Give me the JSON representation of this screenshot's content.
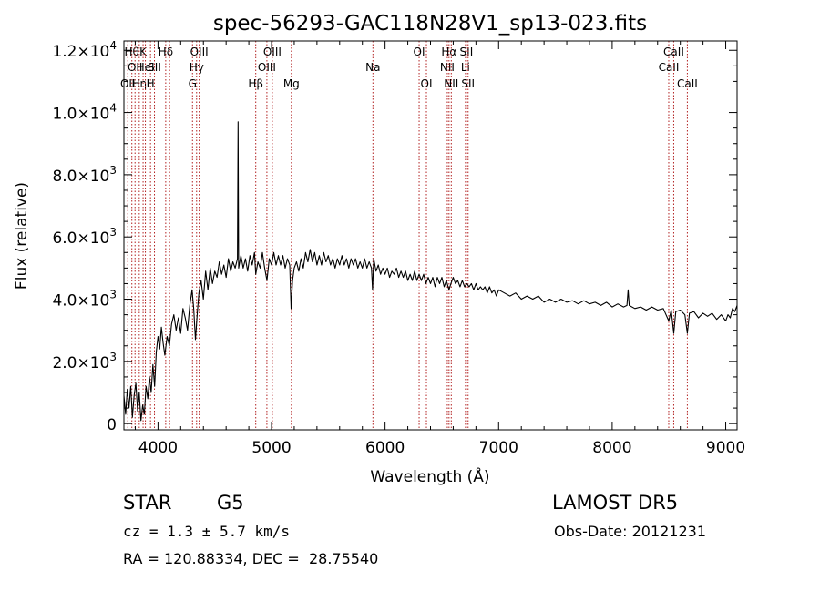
{
  "chart_data": {
    "type": "line",
    "title": "spec-56293-GAC118N28V1_sp13-023.fits",
    "xlabel": "Wavelength (Å)",
    "ylabel": "Flux (relative)",
    "xlim": [
      3700,
      9100
    ],
    "ylim": [
      -200,
      12300
    ],
    "xticks": [
      {
        "value": 4000,
        "label": "4000"
      },
      {
        "value": 5000,
        "label": "5000"
      },
      {
        "value": 6000,
        "label": "6000"
      },
      {
        "value": 7000,
        "label": "7000"
      },
      {
        "value": 8000,
        "label": "8000"
      },
      {
        "value": 9000,
        "label": "9000"
      }
    ],
    "yticks": [
      {
        "value": 0,
        "mant": "0",
        "exp": ""
      },
      {
        "value": 2000,
        "mant": "2.0×10",
        "exp": "3"
      },
      {
        "value": 4000,
        "mant": "4.0×10",
        "exp": "3"
      },
      {
        "value": 6000,
        "mant": "6.0×10",
        "exp": "3"
      },
      {
        "value": 8000,
        "mant": "8.0×10",
        "exp": "3"
      },
      {
        "value": 10000,
        "mant": "1.0×10",
        "exp": "4"
      },
      {
        "value": 12000,
        "mant": "1.2×10",
        "exp": "4"
      }
    ],
    "grid": false,
    "series": [
      {
        "color": "#000000",
        "points": [
          [
            3700,
            900
          ],
          [
            3715,
            300
          ],
          [
            3730,
            1100
          ],
          [
            3745,
            500
          ],
          [
            3760,
            1200
          ],
          [
            3775,
            200
          ],
          [
            3790,
            900
          ],
          [
            3805,
            1300
          ],
          [
            3820,
            400
          ],
          [
            3835,
            1000
          ],
          [
            3850,
            100
          ],
          [
            3865,
            600
          ],
          [
            3880,
            300
          ],
          [
            3895,
            1200
          ],
          [
            3910,
            800
          ],
          [
            3925,
            1500
          ],
          [
            3940,
            1000
          ],
          [
            3955,
            1900
          ],
          [
            3970,
            1200
          ],
          [
            3985,
            2300
          ],
          [
            4000,
            2800
          ],
          [
            4015,
            2400
          ],
          [
            4030,
            3100
          ],
          [
            4045,
            2600
          ],
          [
            4060,
            2200
          ],
          [
            4080,
            2800
          ],
          [
            4100,
            2500
          ],
          [
            4120,
            3200
          ],
          [
            4140,
            3500
          ],
          [
            4160,
            3000
          ],
          [
            4180,
            3400
          ],
          [
            4200,
            2900
          ],
          [
            4220,
            3700
          ],
          [
            4240,
            3400
          ],
          [
            4260,
            3000
          ],
          [
            4280,
            3800
          ],
          [
            4300,
            4300
          ],
          [
            4315,
            3700
          ],
          [
            4330,
            2700
          ],
          [
            4345,
            3500
          ],
          [
            4360,
            4200
          ],
          [
            4380,
            4600
          ],
          [
            4400,
            4000
          ],
          [
            4420,
            4900
          ],
          [
            4440,
            4300
          ],
          [
            4460,
            5000
          ],
          [
            4480,
            4500
          ],
          [
            4500,
            4900
          ],
          [
            4520,
            4700
          ],
          [
            4540,
            5200
          ],
          [
            4560,
            4800
          ],
          [
            4580,
            5100
          ],
          [
            4600,
            4700
          ],
          [
            4620,
            5300
          ],
          [
            4640,
            4900
          ],
          [
            4660,
            5200
          ],
          [
            4680,
            5000
          ],
          [
            4700,
            5300
          ],
          [
            4705,
            9700
          ],
          [
            4710,
            5000
          ],
          [
            4730,
            5400
          ],
          [
            4750,
            5000
          ],
          [
            4770,
            5300
          ],
          [
            4790,
            4900
          ],
          [
            4810,
            5400
          ],
          [
            4830,
            5100
          ],
          [
            4850,
            5500
          ],
          [
            4861,
            4800
          ],
          [
            4880,
            5200
          ],
          [
            4900,
            5000
          ],
          [
            4920,
            5500
          ],
          [
            4940,
            5000
          ],
          [
            4960,
            4600
          ],
          [
            4980,
            5300
          ],
          [
            5000,
            5100
          ],
          [
            5020,
            5500
          ],
          [
            5040,
            5100
          ],
          [
            5060,
            5400
          ],
          [
            5080,
            5100
          ],
          [
            5100,
            5400
          ],
          [
            5120,
            5000
          ],
          [
            5140,
            5300
          ],
          [
            5160,
            5100
          ],
          [
            5172,
            3700
          ],
          [
            5185,
            4600
          ],
          [
            5200,
            5000
          ],
          [
            5220,
            5200
          ],
          [
            5240,
            4900
          ],
          [
            5260,
            5300
          ],
          [
            5280,
            5000
          ],
          [
            5300,
            5500
          ],
          [
            5320,
            5200
          ],
          [
            5340,
            5600
          ],
          [
            5360,
            5200
          ],
          [
            5380,
            5500
          ],
          [
            5400,
            5100
          ],
          [
            5420,
            5400
          ],
          [
            5440,
            5100
          ],
          [
            5460,
            5500
          ],
          [
            5480,
            5200
          ],
          [
            5500,
            5400
          ],
          [
            5520,
            5100
          ],
          [
            5540,
            5300
          ],
          [
            5560,
            5000
          ],
          [
            5580,
            5300
          ],
          [
            5600,
            5100
          ],
          [
            5620,
            5400
          ],
          [
            5640,
            5100
          ],
          [
            5660,
            5300
          ],
          [
            5680,
            5000
          ],
          [
            5700,
            5300
          ],
          [
            5720,
            5100
          ],
          [
            5740,
            5300
          ],
          [
            5760,
            5000
          ],
          [
            5780,
            5200
          ],
          [
            5800,
            5000
          ],
          [
            5820,
            5300
          ],
          [
            5840,
            5000
          ],
          [
            5860,
            5200
          ],
          [
            5880,
            5000
          ],
          [
            5890,
            4300
          ],
          [
            5900,
            5300
          ],
          [
            5920,
            4900
          ],
          [
            5940,
            5100
          ],
          [
            5960,
            4800
          ],
          [
            5980,
            5000
          ],
          [
            6000,
            4800
          ],
          [
            6020,
            5000
          ],
          [
            6040,
            4700
          ],
          [
            6060,
            4900
          ],
          [
            6080,
            4800
          ],
          [
            6100,
            5000
          ],
          [
            6120,
            4700
          ],
          [
            6140,
            4900
          ],
          [
            6160,
            4700
          ],
          [
            6180,
            4900
          ],
          [
            6200,
            4600
          ],
          [
            6220,
            4800
          ],
          [
            6240,
            4600
          ],
          [
            6260,
            4900
          ],
          [
            6280,
            4600
          ],
          [
            6300,
            4800
          ],
          [
            6320,
            4600
          ],
          [
            6340,
            4800
          ],
          [
            6360,
            4500
          ],
          [
            6380,
            4700
          ],
          [
            6400,
            4500
          ],
          [
            6420,
            4700
          ],
          [
            6440,
            4400
          ],
          [
            6460,
            4700
          ],
          [
            6480,
            4500
          ],
          [
            6500,
            4700
          ],
          [
            6520,
            4400
          ],
          [
            6540,
            4600
          ],
          [
            6563,
            4300
          ],
          [
            6580,
            4500
          ],
          [
            6600,
            4700
          ],
          [
            6620,
            4500
          ],
          [
            6640,
            4600
          ],
          [
            6660,
            4400
          ],
          [
            6680,
            4600
          ],
          [
            6700,
            4400
          ],
          [
            6720,
            4500
          ],
          [
            6740,
            4400
          ],
          [
            6760,
            4500
          ],
          [
            6780,
            4300
          ],
          [
            6800,
            4500
          ],
          [
            6820,
            4300
          ],
          [
            6840,
            4400
          ],
          [
            6860,
            4300
          ],
          [
            6880,
            4400
          ],
          [
            6900,
            4200
          ],
          [
            6920,
            4400
          ],
          [
            6940,
            4200
          ],
          [
            6960,
            4300
          ],
          [
            6980,
            4100
          ],
          [
            7000,
            4300
          ],
          [
            7050,
            4200
          ],
          [
            7100,
            4100
          ],
          [
            7150,
            4200
          ],
          [
            7200,
            4000
          ],
          [
            7250,
            4100
          ],
          [
            7300,
            4000
          ],
          [
            7350,
            4100
          ],
          [
            7400,
            3900
          ],
          [
            7450,
            4000
          ],
          [
            7500,
            3900
          ],
          [
            7550,
            4000
          ],
          [
            7600,
            3900
          ],
          [
            7650,
            3950
          ],
          [
            7700,
            3850
          ],
          [
            7750,
            3950
          ],
          [
            7800,
            3850
          ],
          [
            7850,
            3900
          ],
          [
            7900,
            3800
          ],
          [
            7950,
            3900
          ],
          [
            8000,
            3750
          ],
          [
            8050,
            3850
          ],
          [
            8100,
            3750
          ],
          [
            8130,
            3800
          ],
          [
            8140,
            4300
          ],
          [
            8150,
            3800
          ],
          [
            8200,
            3700
          ],
          [
            8250,
            3750
          ],
          [
            8300,
            3650
          ],
          [
            8350,
            3750
          ],
          [
            8400,
            3650
          ],
          [
            8450,
            3700
          ],
          [
            8498,
            3300
          ],
          [
            8520,
            3650
          ],
          [
            8542,
            2900
          ],
          [
            8560,
            3600
          ],
          [
            8600,
            3650
          ],
          [
            8640,
            3500
          ],
          [
            8662,
            2900
          ],
          [
            8680,
            3550
          ],
          [
            8720,
            3600
          ],
          [
            8760,
            3400
          ],
          [
            8800,
            3550
          ],
          [
            8840,
            3450
          ],
          [
            8880,
            3550
          ],
          [
            8920,
            3350
          ],
          [
            8960,
            3500
          ],
          [
            9000,
            3300
          ],
          [
            9020,
            3500
          ],
          [
            9040,
            3400
          ],
          [
            9060,
            3700
          ],
          [
            9080,
            3600
          ],
          [
            9100,
            3800
          ]
        ]
      }
    ],
    "line_markers": {
      "color": "#b22222",
      "lines": [
        {
          "x": 3734,
          "labels": [
            {
              "text": "OII",
              "row": 2
            }
          ]
        },
        {
          "x": 3770,
          "labels": [
            {
              "text": "Hθ",
              "row": 0
            }
          ]
        },
        {
          "x": 3798,
          "labels": [
            {
              "text": "OII",
              "row": 1
            }
          ]
        },
        {
          "x": 3835,
          "labels": [
            {
              "text": "Hη",
              "row": 2
            }
          ]
        },
        {
          "x": 3869,
          "labels": [
            {
              "text": "K",
              "row": 0
            }
          ]
        },
        {
          "x": 3889,
          "labels": [
            {
              "text": "HeI",
              "row": 1
            }
          ]
        },
        {
          "x": 3934,
          "labels": [
            {
              "text": "H",
              "row": 2
            }
          ]
        },
        {
          "x": 3969,
          "labels": [
            {
              "text": "SII",
              "row": 1
            }
          ]
        },
        {
          "x": 4068,
          "labels": [
            {
              "text": "Hδ",
              "row": 0
            }
          ]
        },
        {
          "x": 4102,
          "labels": []
        },
        {
          "x": 4304,
          "labels": [
            {
              "text": "G",
              "row": 2
            }
          ]
        },
        {
          "x": 4340,
          "labels": [
            {
              "text": "Hγ",
              "row": 1
            }
          ]
        },
        {
          "x": 4363,
          "labels": [
            {
              "text": "OIII",
              "row": 0
            }
          ]
        },
        {
          "x": 4861,
          "labels": [
            {
              "text": "Hβ",
              "row": 2
            }
          ]
        },
        {
          "x": 4959,
          "labels": [
            {
              "text": "OIII",
              "row": 1
            }
          ]
        },
        {
          "x": 5007,
          "labels": [
            {
              "text": "OIII",
              "row": 0
            }
          ]
        },
        {
          "x": 5175,
          "labels": [
            {
              "text": "Mg",
              "row": 2
            }
          ]
        },
        {
          "x": 5893,
          "labels": [
            {
              "text": "Na",
              "row": 1
            }
          ]
        },
        {
          "x": 6300,
          "labels": [
            {
              "text": "OI",
              "row": 0
            }
          ]
        },
        {
          "x": 6364,
          "labels": [
            {
              "text": "OI",
              "row": 2
            }
          ]
        },
        {
          "x": 6548,
          "labels": [
            {
              "text": "NII",
              "row": 1
            }
          ]
        },
        {
          "x": 6563,
          "labels": [
            {
              "text": "Hα",
              "row": 0
            }
          ]
        },
        {
          "x": 6583,
          "labels": [
            {
              "text": "NII",
              "row": 2
            }
          ]
        },
        {
          "x": 6708,
          "labels": [
            {
              "text": "Li",
              "row": 1
            }
          ]
        },
        {
          "x": 6716,
          "labels": [
            {
              "text": "SII",
              "row": 0
            }
          ]
        },
        {
          "x": 6731,
          "labels": [
            {
              "text": "SII",
              "row": 2
            }
          ]
        },
        {
          "x": 8498,
          "labels": [
            {
              "text": "CaII",
              "row": 1
            }
          ]
        },
        {
          "x": 8542,
          "labels": [
            {
              "text": "CaII",
              "row": 0
            }
          ]
        },
        {
          "x": 8662,
          "labels": [
            {
              "text": "CaII",
              "row": 2
            }
          ]
        }
      ]
    }
  },
  "info": {
    "class": "STAR",
    "subclass": "G5",
    "survey": "LAMOST DR5",
    "cz": "cz = 1.3 ± 5.7 km/s",
    "obs_date": "Obs-Date: 20121231",
    "coords": "RA = 120.88334, DEC =  28.75540"
  }
}
